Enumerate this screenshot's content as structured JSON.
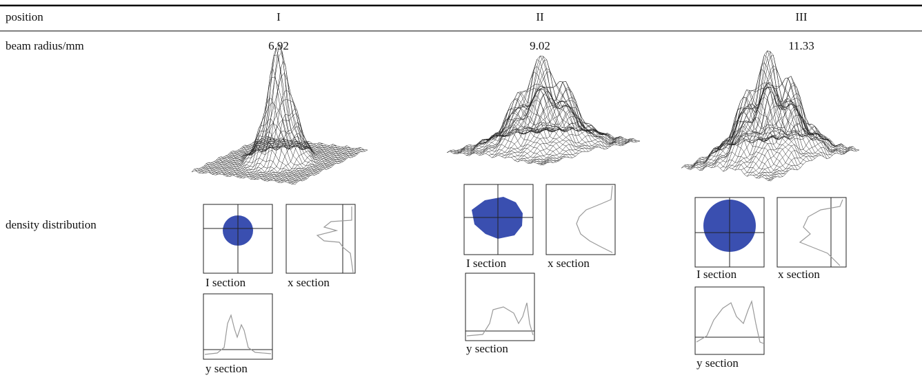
{
  "table": {
    "header": [
      "position",
      "I",
      "II",
      "III"
    ],
    "rows": [
      [
        "beam radius/mm",
        "6.92",
        "9.02",
        "11.33"
      ],
      [
        "density distribution"
      ]
    ]
  },
  "panels": [
    {
      "labels": [
        "I section",
        "x section",
        "y section"
      ]
    },
    {
      "labels": [
        "I section",
        "x section",
        "y section"
      ]
    },
    {
      "labels": [
        "I section",
        "x section",
        "y section"
      ]
    }
  ]
}
